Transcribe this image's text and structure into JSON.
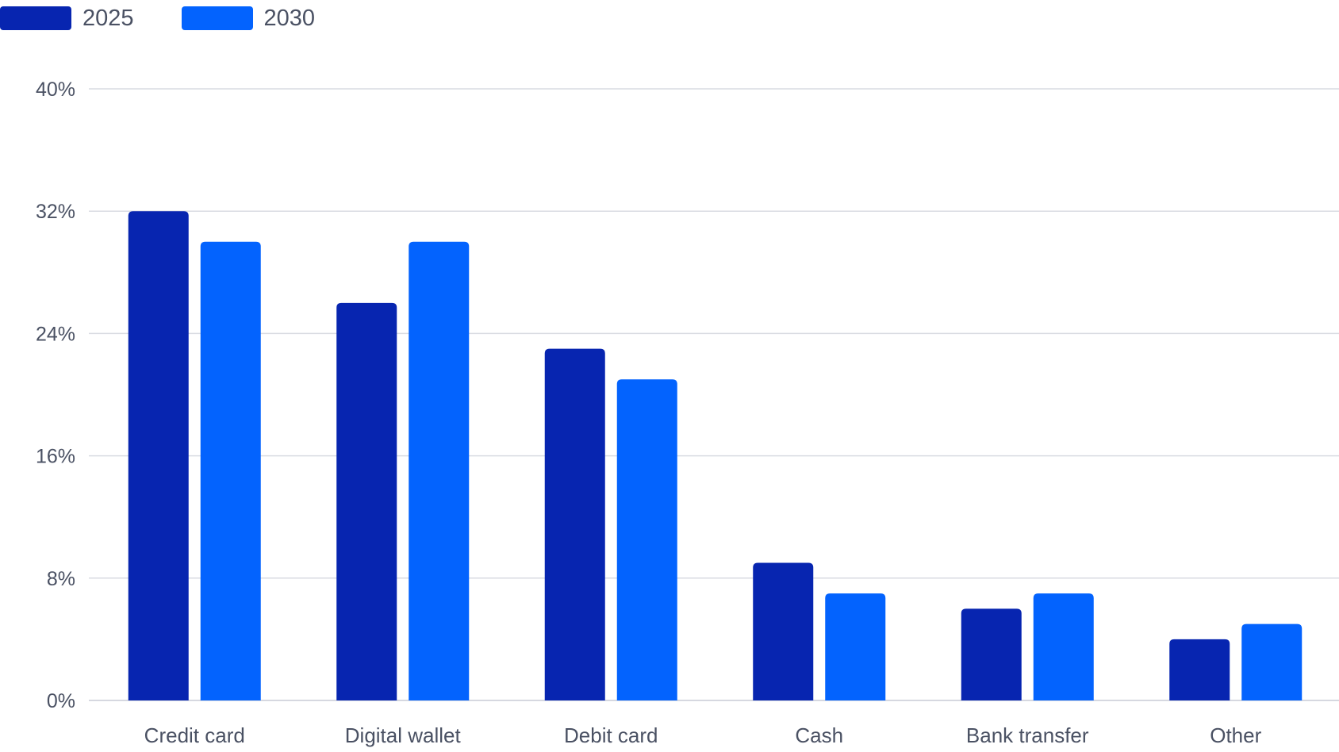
{
  "chart_data": {
    "type": "bar",
    "title": "",
    "xlabel": "",
    "ylabel": "",
    "categories": [
      "Credit card",
      "Digital wallet",
      "Debit card",
      "Cash",
      "Bank transfer",
      "Other"
    ],
    "series": [
      {
        "name": "2025",
        "color": "#0725b0",
        "values": [
          32,
          26,
          23,
          9,
          6,
          4
        ]
      },
      {
        "name": "2030",
        "color": "#0363fe",
        "values": [
          30,
          30,
          21,
          7,
          7,
          5
        ]
      }
    ],
    "ylim": [
      0,
      40
    ],
    "yticks": [
      0,
      8,
      16,
      24,
      32,
      40
    ],
    "ytick_labels": [
      "0%",
      "8%",
      "16%",
      "24%",
      "32%",
      "40%"
    ],
    "grid": true,
    "legend_position": "top-left"
  }
}
